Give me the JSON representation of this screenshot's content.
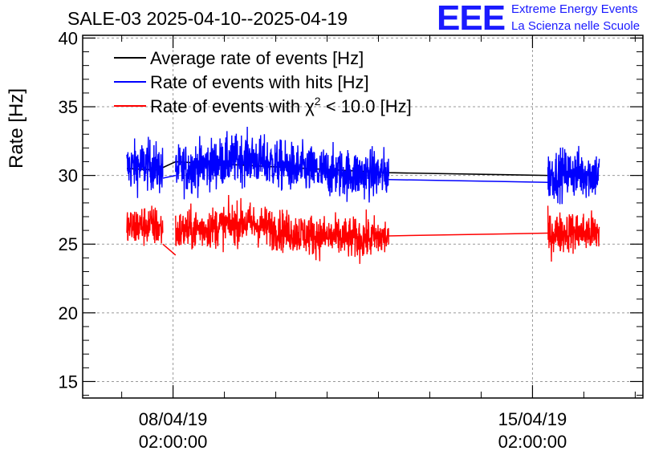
{
  "header": {
    "title": "SALE-03 2025-04-10--2025-04-19",
    "logo_text": "EEE",
    "logo_line1": "Extreme Energy Events",
    "logo_line2": "La Scienza nelle Scuole"
  },
  "colors": {
    "average": "#000000",
    "hits": "#0000ff",
    "chi2": "#ff0000",
    "grid": "#999999",
    "logo": "#1a1aff"
  },
  "chart_data": {
    "type": "line",
    "title": "SALE-03 2025-04-10--2025-04-19",
    "xlabel": "",
    "ylabel": "Rate [Hz]",
    "ylim": [
      13.8,
      40.2
    ],
    "yticks": [
      15,
      20,
      25,
      30,
      35,
      40
    ],
    "x_unit": "days since 2025-04-08 02:00:00",
    "xlim": [
      -1.76,
      9.15
    ],
    "xticks": [
      {
        "x": 0,
        "date": "08/04/19",
        "time": "02:00:00"
      },
      {
        "x": 7,
        "date": "15/04/19",
        "time": "02:00:00"
      }
    ],
    "grid": true,
    "legend_position": "top-left",
    "legend": [
      {
        "key": "average",
        "label": "Average rate of events [Hz]"
      },
      {
        "key": "hits",
        "label": "Rate of events with hits [Hz]"
      },
      {
        "key": "chi2",
        "label_prefix": "Rate of events with ",
        "chi": "χ",
        "sup": "2",
        "label_suffix": " < 10.0 [Hz]"
      }
    ],
    "series": [
      {
        "name": "Average rate of events [Hz]",
        "key": "average",
        "x": [
          -0.9,
          -0.3,
          0.05,
          4.2,
          7.3
        ],
        "y": [
          30.5,
          30.4,
          31.0,
          30.2,
          30.0
        ]
      },
      {
        "name": "Rate of events with hits [Hz]",
        "key": "hits",
        "noise": 0.9,
        "segments": [
          {
            "x": [
              -0.9,
              -0.45,
              -0.2
            ],
            "y": [
              30.6,
              30.8,
              30.3
            ]
          },
          {
            "x": [
              0.05,
              0.7,
              1.4,
              2.1,
              2.8,
              3.5,
              4.2
            ],
            "y": [
              30.4,
              30.8,
              31.3,
              30.7,
              30.3,
              30.1,
              30.1
            ]
          },
          {
            "x": [
              7.3,
              7.7,
              8.3
            ],
            "y": [
              30.0,
              30.2,
              30.1
            ]
          }
        ],
        "connectors": [
          {
            "x": [
              -0.2,
              0.05
            ],
            "y": [
              29.8,
              30.0
            ]
          },
          {
            "x": [
              4.2,
              7.3
            ],
            "y": [
              29.7,
              29.5
            ]
          }
        ]
      },
      {
        "name": "Rate of events with χ2 < 10.0 [Hz]",
        "key": "chi2",
        "noise": 0.75,
        "segments": [
          {
            "x": [
              -0.9,
              -0.45,
              -0.2
            ],
            "y": [
              26.2,
              26.4,
              26.1
            ]
          },
          {
            "x": [
              0.05,
              0.7,
              1.4,
              2.1,
              2.8,
              3.5,
              4.2
            ],
            "y": [
              25.9,
              26.2,
              26.6,
              26.0,
              25.6,
              25.4,
              25.5
            ]
          },
          {
            "x": [
              7.3,
              7.7,
              8.3
            ],
            "y": [
              25.7,
              25.9,
              25.8
            ]
          }
        ],
        "connectors": [
          {
            "x": [
              -0.2,
              0.05
            ],
            "y": [
              25.0,
              24.2
            ]
          },
          {
            "x": [
              4.2,
              7.3
            ],
            "y": [
              25.6,
              25.8
            ]
          }
        ]
      }
    ]
  }
}
